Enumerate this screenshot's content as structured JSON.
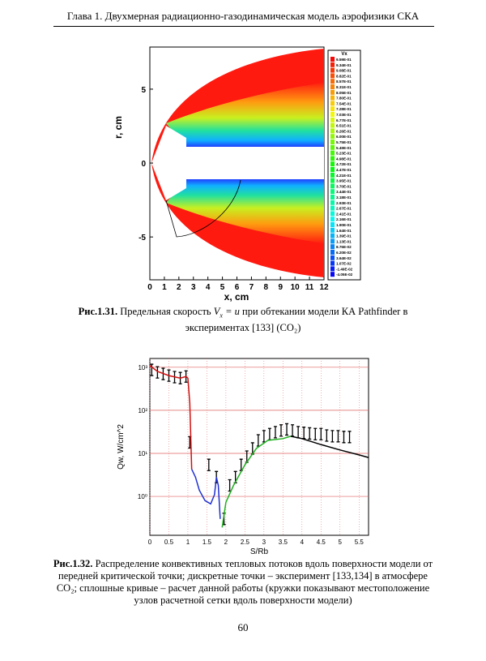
{
  "header": {
    "title": "Глава 1. Двухмерная радиационно-газодинамическая модель аэрофизики СКА"
  },
  "figure1": {
    "xlabel": "x, cm",
    "ylabel": "r, cm",
    "xlim": [
      0,
      12
    ],
    "ylim": [
      -7.9,
      7.85
    ],
    "xticks": [
      0,
      1,
      2,
      3,
      4,
      5,
      6,
      7,
      8,
      9,
      10,
      11,
      12
    ],
    "yticks": [
      5,
      0,
      -5
    ],
    "legend": {
      "title": "Vx",
      "labels": [
        "9.59E-01",
        "9.34E-01",
        "9.08E-01",
        "8.82E-01",
        "8.57E-01",
        "8.31E-01",
        "8.05E-01",
        "7.80E-01",
        "7.54E-01",
        "7.28E-01",
        "7.03E-01",
        "6.77E-01",
        "6.51E-01",
        "6.26E-01",
        "6.00E-01",
        "5.75E-01",
        "5.49E-01",
        "5.23E-01",
        "4.98E-01",
        "4.72E-01",
        "4.47E-01",
        "4.21E-01",
        "3.95E-01",
        "3.70E-01",
        "3.44E-01",
        "3.18E-01",
        "2.93E-01",
        "2.67E-01",
        "2.41E-01",
        "2.16E-01",
        "1.90E-01",
        "1.64E-01",
        "1.39E-01",
        "1.13E-01",
        "8.76E-02",
        "6.20E-02",
        "3.64E-02",
        "1.07E-02",
        "-1.49E-02",
        "-4.05E-02"
      ]
    }
  },
  "caption1": {
    "label": "Рис.1.31.",
    "text_before": "Предельная скорость",
    "formula_var": "V",
    "formula_sub": "x",
    "formula_rest": "= u",
    "text_after": "при обтекании модели КА Pathfinder в экспериментах [133] (CO₂)"
  },
  "figure2": {
    "type": "line",
    "xlabel": "S/Rb",
    "ylabel": "Qw, W/cm^2",
    "log_y": true,
    "grid": true,
    "grid_color": "#e06060",
    "xlim": [
      0,
      5.75
    ],
    "ylim": [
      0.125,
      1600
    ],
    "xticks": [
      0,
      0.5,
      1,
      1.5,
      2,
      2.5,
      3,
      3.5,
      4,
      4.5,
      5,
      5.5
    ],
    "yticks": [
      {
        "value": 1000,
        "label": "10³"
      },
      {
        "value": 100,
        "label": "10²"
      },
      {
        "value": 10,
        "label": "10¹"
      },
      {
        "value": 1,
        "label": "10⁰"
      }
    ],
    "series": [
      {
        "style": "markers",
        "color": "#000000",
        "x": [
          0.05,
          0.2,
          0.35,
          0.5,
          0.65,
          0.8,
          0.95,
          1.05,
          1.55,
          1.75,
          1.95,
          2.1,
          2.25,
          2.4,
          2.55,
          2.7,
          2.85,
          3.0,
          3.15,
          3.3,
          3.45,
          3.6,
          3.75,
          3.9,
          4.05,
          4.2,
          4.35,
          4.5,
          4.65,
          4.8,
          4.95,
          5.1,
          5.25
        ],
        "values": [
          870,
          760,
          700,
          640,
          590,
          560,
          610,
          18,
          5.4,
          2.8,
          0.3,
          1.8,
          2.8,
          5.4,
          8.4,
          13,
          20,
          25,
          28,
          31,
          34,
          36,
          34,
          31,
          30,
          29,
          28,
          28,
          26,
          25,
          25,
          24,
          24
        ]
      },
      {
        "style": "line",
        "color": "#d01010",
        "x": [
          0,
          0.2,
          0.5,
          0.8,
          0.95,
          1.0,
          1.05,
          1.1
        ],
        "values": [
          1100,
          800,
          640,
          560,
          610,
          560,
          150,
          4.3
        ]
      },
      {
        "style": "line",
        "color": "#2030d0",
        "x": [
          1.1,
          1.2,
          1.3,
          1.45,
          1.6,
          1.7,
          1.75,
          1.8,
          1.85
        ],
        "values": [
          4.3,
          2.8,
          1.4,
          0.8,
          0.67,
          1.1,
          2.8,
          1.8,
          0.3
        ]
      },
      {
        "style": "line",
        "color": "#20b020",
        "x": [
          1.9,
          2.0,
          2.2,
          2.5,
          2.8,
          3.1,
          3.5,
          3.7
        ],
        "values": [
          0.19,
          0.73,
          1.8,
          5.4,
          13,
          20,
          22,
          25
        ]
      },
      {
        "style": "line",
        "color": "#000000",
        "x": [
          3.7,
          4.0,
          4.5,
          5.0,
          5.5,
          5.75
        ],
        "values": [
          25,
          22,
          16,
          12,
          9.2,
          8
        ]
      }
    ]
  },
  "caption2": {
    "label": "Рис.1.32.",
    "text": "Распределение конвективных тепловых потоков вдоль поверхности модели от передней критической точки; дискретные точки – эксперимент [133,134] в атмосфере CO₂; сплошные кривые – расчет данной работы (кружки показывают местоположение узлов расчетной сетки вдоль поверхности модели)"
  },
  "page": {
    "number": "60"
  }
}
